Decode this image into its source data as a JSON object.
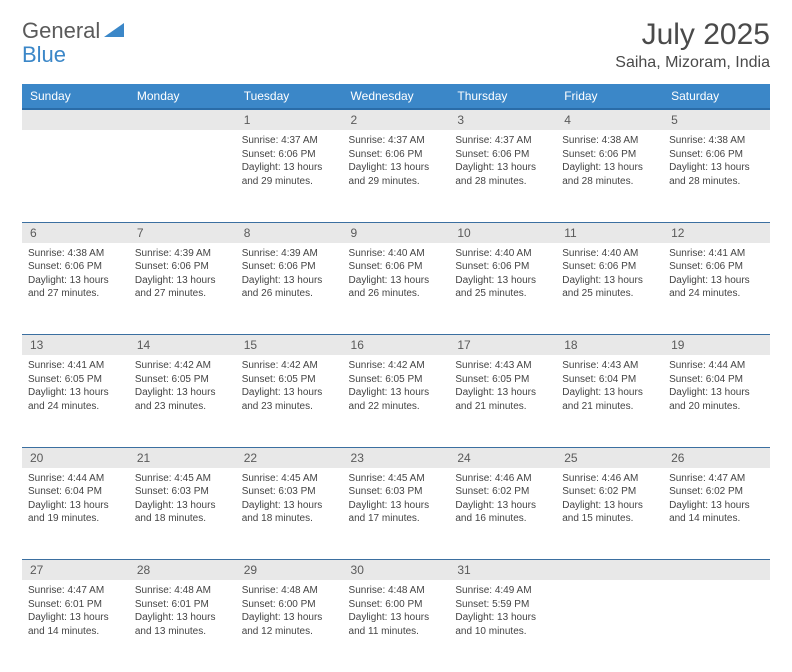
{
  "brand": {
    "part1": "General",
    "part2": "Blue"
  },
  "title": "July 2025",
  "location": "Saiha, Mizoram, India",
  "colors": {
    "header_bg": "#3b87c8",
    "header_border": "#2a6ca8",
    "daynum_bg": "#e8e8e8",
    "row_divider": "#3b6fa0",
    "text": "#444444",
    "brand_gray": "#5a5a5a",
    "brand_blue": "#3b87c8",
    "page_bg": "#ffffff"
  },
  "weekdays": [
    "Sunday",
    "Monday",
    "Tuesday",
    "Wednesday",
    "Thursday",
    "Friday",
    "Saturday"
  ],
  "weeks": [
    [
      null,
      null,
      {
        "n": "1",
        "sr": "4:37 AM",
        "ss": "6:06 PM",
        "dl": "13 hours and 29 minutes."
      },
      {
        "n": "2",
        "sr": "4:37 AM",
        "ss": "6:06 PM",
        "dl": "13 hours and 29 minutes."
      },
      {
        "n": "3",
        "sr": "4:37 AM",
        "ss": "6:06 PM",
        "dl": "13 hours and 28 minutes."
      },
      {
        "n": "4",
        "sr": "4:38 AM",
        "ss": "6:06 PM",
        "dl": "13 hours and 28 minutes."
      },
      {
        "n": "5",
        "sr": "4:38 AM",
        "ss": "6:06 PM",
        "dl": "13 hours and 28 minutes."
      }
    ],
    [
      {
        "n": "6",
        "sr": "4:38 AM",
        "ss": "6:06 PM",
        "dl": "13 hours and 27 minutes."
      },
      {
        "n": "7",
        "sr": "4:39 AM",
        "ss": "6:06 PM",
        "dl": "13 hours and 27 minutes."
      },
      {
        "n": "8",
        "sr": "4:39 AM",
        "ss": "6:06 PM",
        "dl": "13 hours and 26 minutes."
      },
      {
        "n": "9",
        "sr": "4:40 AM",
        "ss": "6:06 PM",
        "dl": "13 hours and 26 minutes."
      },
      {
        "n": "10",
        "sr": "4:40 AM",
        "ss": "6:06 PM",
        "dl": "13 hours and 25 minutes."
      },
      {
        "n": "11",
        "sr": "4:40 AM",
        "ss": "6:06 PM",
        "dl": "13 hours and 25 minutes."
      },
      {
        "n": "12",
        "sr": "4:41 AM",
        "ss": "6:06 PM",
        "dl": "13 hours and 24 minutes."
      }
    ],
    [
      {
        "n": "13",
        "sr": "4:41 AM",
        "ss": "6:05 PM",
        "dl": "13 hours and 24 minutes."
      },
      {
        "n": "14",
        "sr": "4:42 AM",
        "ss": "6:05 PM",
        "dl": "13 hours and 23 minutes."
      },
      {
        "n": "15",
        "sr": "4:42 AM",
        "ss": "6:05 PM",
        "dl": "13 hours and 23 minutes."
      },
      {
        "n": "16",
        "sr": "4:42 AM",
        "ss": "6:05 PM",
        "dl": "13 hours and 22 minutes."
      },
      {
        "n": "17",
        "sr": "4:43 AM",
        "ss": "6:05 PM",
        "dl": "13 hours and 21 minutes."
      },
      {
        "n": "18",
        "sr": "4:43 AM",
        "ss": "6:04 PM",
        "dl": "13 hours and 21 minutes."
      },
      {
        "n": "19",
        "sr": "4:44 AM",
        "ss": "6:04 PM",
        "dl": "13 hours and 20 minutes."
      }
    ],
    [
      {
        "n": "20",
        "sr": "4:44 AM",
        "ss": "6:04 PM",
        "dl": "13 hours and 19 minutes."
      },
      {
        "n": "21",
        "sr": "4:45 AM",
        "ss": "6:03 PM",
        "dl": "13 hours and 18 minutes."
      },
      {
        "n": "22",
        "sr": "4:45 AM",
        "ss": "6:03 PM",
        "dl": "13 hours and 18 minutes."
      },
      {
        "n": "23",
        "sr": "4:45 AM",
        "ss": "6:03 PM",
        "dl": "13 hours and 17 minutes."
      },
      {
        "n": "24",
        "sr": "4:46 AM",
        "ss": "6:02 PM",
        "dl": "13 hours and 16 minutes."
      },
      {
        "n": "25",
        "sr": "4:46 AM",
        "ss": "6:02 PM",
        "dl": "13 hours and 15 minutes."
      },
      {
        "n": "26",
        "sr": "4:47 AM",
        "ss": "6:02 PM",
        "dl": "13 hours and 14 minutes."
      }
    ],
    [
      {
        "n": "27",
        "sr": "4:47 AM",
        "ss": "6:01 PM",
        "dl": "13 hours and 14 minutes."
      },
      {
        "n": "28",
        "sr": "4:48 AM",
        "ss": "6:01 PM",
        "dl": "13 hours and 13 minutes."
      },
      {
        "n": "29",
        "sr": "4:48 AM",
        "ss": "6:00 PM",
        "dl": "13 hours and 12 minutes."
      },
      {
        "n": "30",
        "sr": "4:48 AM",
        "ss": "6:00 PM",
        "dl": "13 hours and 11 minutes."
      },
      {
        "n": "31",
        "sr": "4:49 AM",
        "ss": "5:59 PM",
        "dl": "13 hours and 10 minutes."
      },
      null,
      null
    ]
  ],
  "labels": {
    "sunrise": "Sunrise:",
    "sunset": "Sunset:",
    "daylight": "Daylight:"
  }
}
